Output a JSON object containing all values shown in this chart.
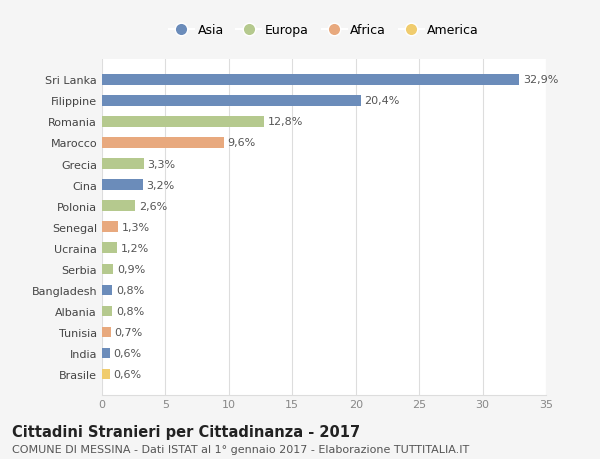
{
  "categories": [
    "Sri Lanka",
    "Filippine",
    "Romania",
    "Marocco",
    "Grecia",
    "Cina",
    "Polonia",
    "Senegal",
    "Ucraina",
    "Serbia",
    "Bangladesh",
    "Albania",
    "Tunisia",
    "India",
    "Brasile"
  ],
  "values": [
    32.9,
    20.4,
    12.8,
    9.6,
    3.3,
    3.2,
    2.6,
    1.3,
    1.2,
    0.9,
    0.8,
    0.8,
    0.7,
    0.6,
    0.6
  ],
  "labels": [
    "32,9%",
    "20,4%",
    "12,8%",
    "9,6%",
    "3,3%",
    "3,2%",
    "2,6%",
    "1,3%",
    "1,2%",
    "0,9%",
    "0,8%",
    "0,8%",
    "0,7%",
    "0,6%",
    "0,6%"
  ],
  "continents": [
    "Asia",
    "Asia",
    "Europa",
    "Africa",
    "Europa",
    "Asia",
    "Europa",
    "Africa",
    "Europa",
    "Europa",
    "Asia",
    "Europa",
    "Africa",
    "Asia",
    "America"
  ],
  "continent_colors": {
    "Asia": "#6b8cba",
    "Europa": "#b5c98e",
    "Africa": "#e8a97e",
    "America": "#f0cc6e"
  },
  "legend_order": [
    "Asia",
    "Europa",
    "Africa",
    "America"
  ],
  "xlim": [
    0,
    35
  ],
  "xticks": [
    0,
    5,
    10,
    15,
    20,
    25,
    30,
    35
  ],
  "title": "Cittadini Stranieri per Cittadinanza - 2017",
  "subtitle": "COMUNE DI MESSINA - Dati ISTAT al 1° gennaio 2017 - Elaborazione TUTTITALIA.IT",
  "background_color": "#f5f5f5",
  "bar_background_color": "#ffffff",
  "title_fontsize": 10.5,
  "subtitle_fontsize": 8,
  "label_fontsize": 8,
  "tick_fontsize": 8,
  "legend_fontsize": 9,
  "bar_height": 0.5
}
